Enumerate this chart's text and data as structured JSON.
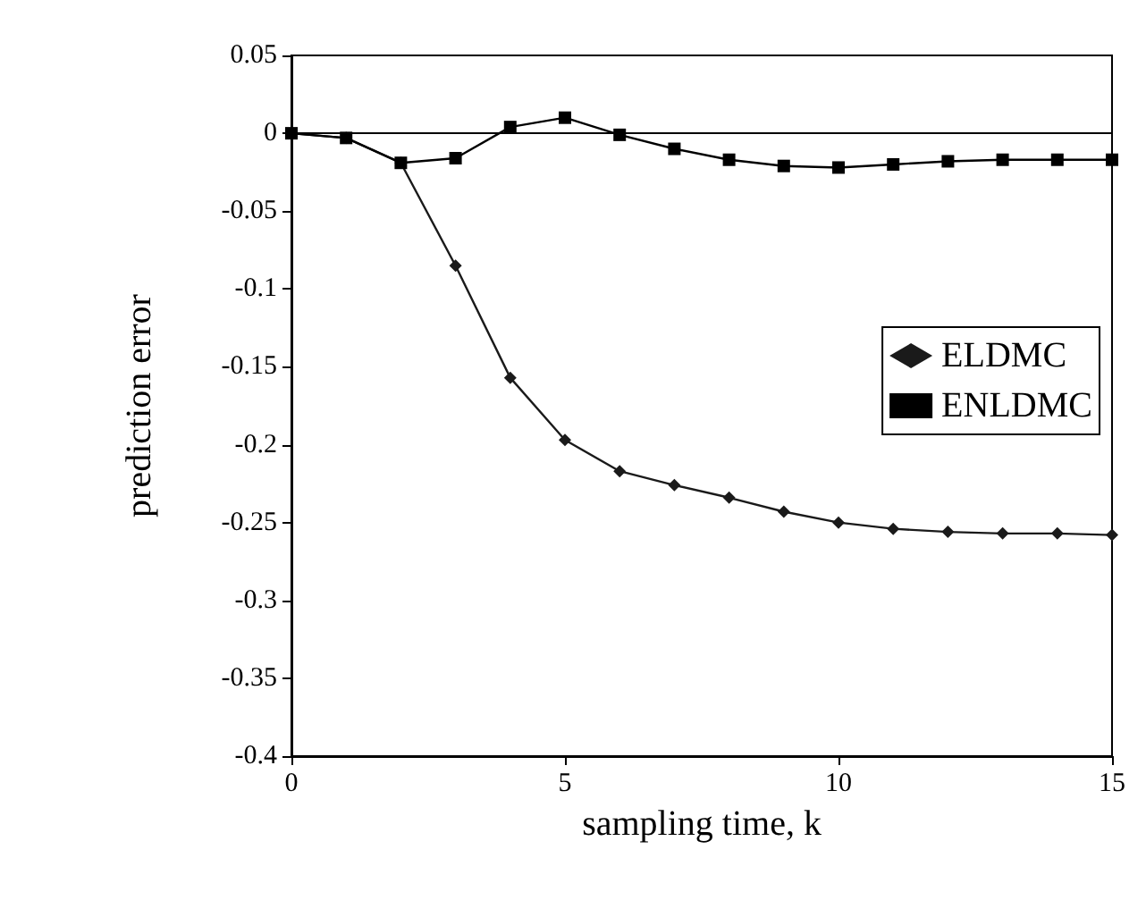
{
  "chart_data": {
    "type": "line",
    "xlabel": "sampling time, k",
    "ylabel": "prediction error",
    "x": [
      0,
      1,
      2,
      3,
      4,
      5,
      6,
      7,
      8,
      9,
      10,
      11,
      12,
      13,
      14,
      15
    ],
    "series": [
      {
        "name": "ELDMC",
        "color": "#1a1a1a",
        "marker": "diamond",
        "values": [
          0,
          -0.003,
          -0.019,
          -0.085,
          -0.157,
          -0.197,
          -0.217,
          -0.226,
          -0.234,
          -0.243,
          -0.25,
          -0.254,
          -0.256,
          -0.257,
          -0.257,
          -0.258
        ]
      },
      {
        "name": "ENLDMC",
        "color": "#000000",
        "marker": "square",
        "values": [
          0,
          -0.003,
          -0.019,
          -0.016,
          0.004,
          0.01,
          -0.001,
          -0.01,
          -0.017,
          -0.021,
          -0.022,
          -0.02,
          -0.018,
          -0.017,
          -0.017,
          -0.017
        ]
      }
    ],
    "xlim": [
      0,
      15
    ],
    "xticks": [
      0,
      5,
      10,
      15
    ],
    "ylim": [
      -0.4,
      0.05
    ],
    "yticks": [
      -0.4,
      -0.35,
      -0.3,
      -0.25,
      -0.2,
      -0.15,
      -0.1,
      -0.05,
      0,
      0.05
    ],
    "ref_lines": [
      {
        "axis": "y",
        "value": 0,
        "color": "#000000"
      }
    ],
    "grid": false,
    "legend": "right",
    "line_style": "solid"
  }
}
